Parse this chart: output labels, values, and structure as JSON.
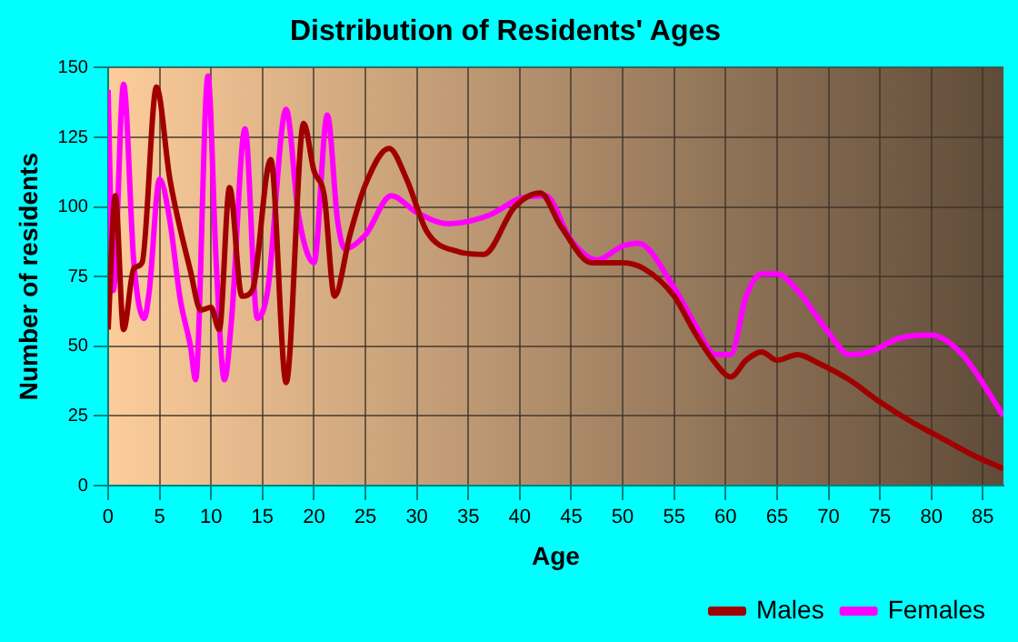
{
  "chart_data": {
    "type": "line",
    "title": "Distribution of Residents' Ages",
    "xlabel": "Age",
    "ylabel": "Number of residents",
    "series": [
      {
        "name": "Males",
        "color": "#a00000",
        "x": [
          0,
          0.7,
          1.5,
          2.5,
          3.3,
          4.7,
          6,
          8,
          9,
          10,
          10.8,
          11.8,
          13,
          14,
          15.8,
          17.3,
          19,
          20,
          21,
          22,
          23.5,
          25,
          27.3,
          29,
          31,
          34,
          36.5,
          39.5,
          42,
          44,
          47,
          50,
          52,
          55,
          57,
          59,
          60.5,
          62,
          63.5,
          65,
          67,
          69,
          72,
          75,
          78,
          81,
          84,
          87
        ],
        "values": [
          56,
          104,
          56,
          78,
          80,
          143,
          110,
          77,
          63,
          64,
          56,
          107,
          68,
          70,
          117,
          37,
          130,
          113,
          104,
          68,
          90,
          108,
          121,
          110,
          91,
          84,
          83,
          100,
          105,
          93,
          80,
          80,
          78,
          68,
          55,
          44,
          39,
          45,
          48,
          45,
          47,
          44,
          38,
          30,
          23,
          17,
          11,
          6
        ]
      },
      {
        "name": "Females",
        "color": "#ff00ff",
        "x": [
          0,
          0.5,
          1.5,
          2.5,
          3.5,
          4,
          5,
          6,
          7,
          8,
          8.5,
          9.7,
          10.5,
          11.3,
          12,
          13.3,
          14.5,
          15.5,
          17.3,
          18.5,
          20,
          21.3,
          22.3,
          23,
          25,
          27.5,
          30,
          33,
          37,
          40,
          42.5,
          45,
          47.5,
          50,
          51.5,
          55,
          57,
          59,
          60.5,
          62,
          63.5,
          65,
          67,
          70,
          72,
          74,
          77,
          80,
          83,
          87
        ],
        "values": [
          142,
          70,
          144,
          80,
          60,
          70,
          110,
          95,
          67,
          50,
          38,
          147,
          80,
          38,
          60,
          128,
          60,
          70,
          135,
          97,
          80,
          133,
          95,
          85,
          90,
          104,
          98,
          94,
          97,
          103,
          104,
          88,
          81,
          86,
          87,
          71,
          58,
          47,
          47,
          68,
          76,
          76,
          70,
          55,
          47,
          48,
          53,
          54,
          47,
          25
        ]
      }
    ],
    "xlim": [
      0,
      87
    ],
    "xticks": [
      0,
      5,
      10,
      15,
      20,
      25,
      30,
      35,
      40,
      45,
      50,
      55,
      60,
      65,
      70,
      75,
      80,
      85
    ],
    "ylim": [
      0,
      150
    ],
    "yticks": [
      0,
      25,
      50,
      75,
      100,
      125,
      150
    ],
    "grid": true,
    "legend": "bottom right",
    "marker": "none",
    "line_style": "solid"
  }
}
